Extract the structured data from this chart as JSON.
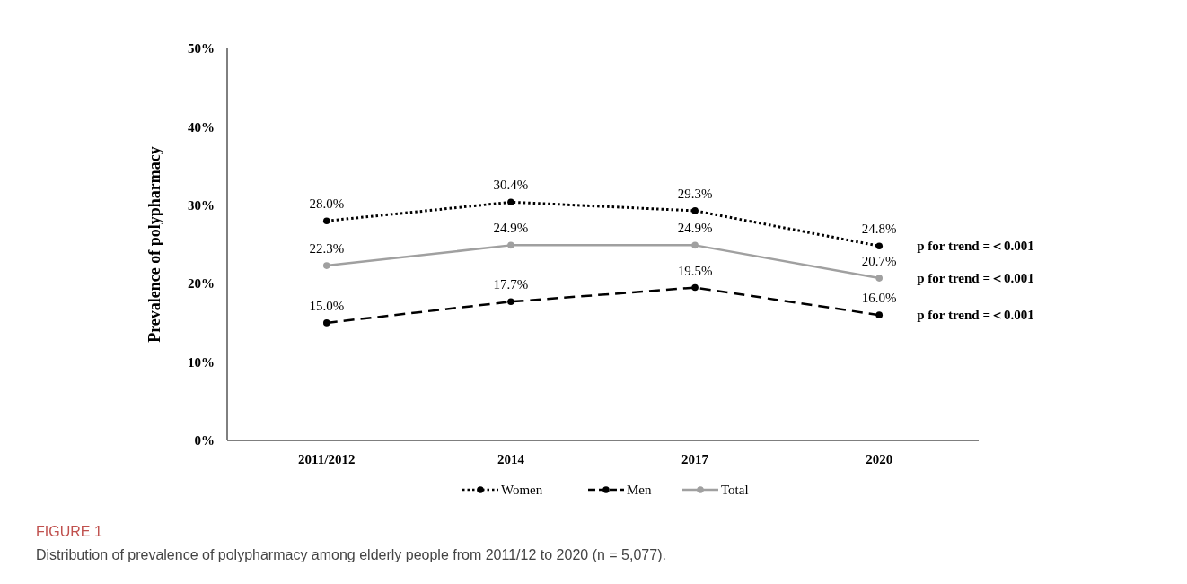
{
  "chart_data": {
    "type": "line",
    "ylabel": "Prevalence of polypharmacy",
    "categories": [
      "2011/2012",
      "2014",
      "2017",
      "2020"
    ],
    "series": [
      {
        "name": "Women",
        "color": "#000000",
        "line_style": "dotted",
        "values": [
          28.0,
          30.4,
          29.3,
          24.8
        ],
        "value_labels": [
          "28.0%",
          "30.4%",
          "29.3%",
          "24.8%"
        ]
      },
      {
        "name": "Men",
        "color": "#000000",
        "line_style": "dashed",
        "values": [
          15.0,
          17.7,
          19.5,
          16.0
        ],
        "value_labels": [
          "15.0%",
          "17.7%",
          "19.5%",
          "16.0%"
        ]
      },
      {
        "name": "Total",
        "color": "#a0a0a0",
        "line_style": "solid",
        "values": [
          22.3,
          24.9,
          24.9,
          20.7
        ],
        "value_labels": [
          "22.3%",
          "24.9%",
          "24.9%",
          "20.7%"
        ]
      }
    ],
    "ylim": [
      0,
      50
    ],
    "yticks": [
      {
        "value": 0,
        "label": "0%"
      },
      {
        "value": 10,
        "label": "10%"
      },
      {
        "value": 20,
        "label": "20%"
      },
      {
        "value": 30,
        "label": "30%"
      },
      {
        "value": 40,
        "label": "40%"
      },
      {
        "value": 50,
        "label": "50%"
      }
    ],
    "grid": false,
    "legend": "bottom",
    "marker": "circle",
    "annotations": [
      {
        "text": "p for trend =＜0.001",
        "x": "2020",
        "y": 24.8
      },
      {
        "text": "p for trend =＜0.001",
        "x": "2020",
        "y": 20.7
      },
      {
        "text": "p for trend =＜0.001",
        "x": "2020",
        "y": 16.0
      },
      "FIGURE 1",
      "Distribution of prevalence of polypharmacy among elderly people from 2011/12 to 2020 (n = 5,077)."
    ]
  }
}
